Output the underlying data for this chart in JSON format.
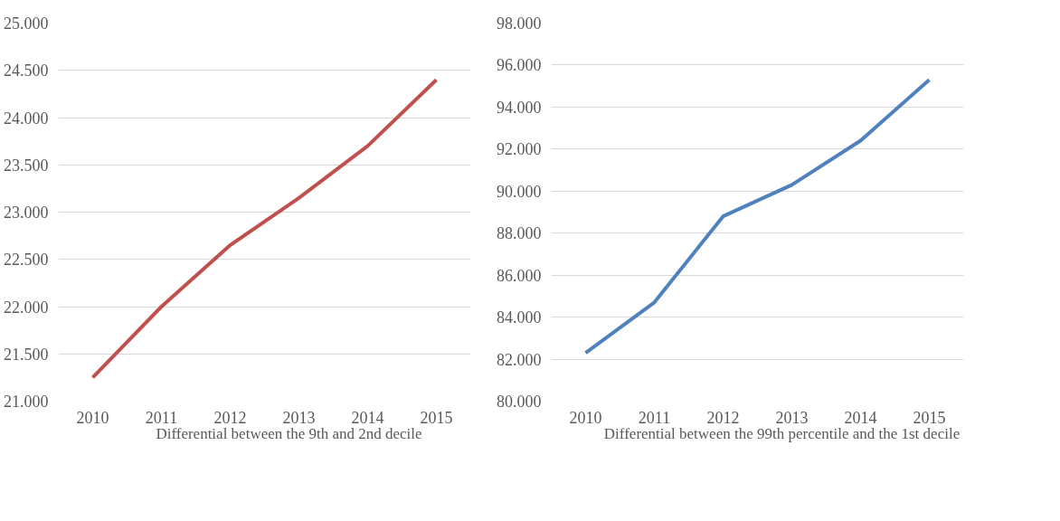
{
  "chart_data": [
    {
      "type": "line",
      "categories": [
        "2010",
        "2011",
        "2012",
        "2013",
        "2014",
        "2015"
      ],
      "series": [
        {
          "name": "Differential between the 9th and 2nd decile",
          "color": "#c0504d",
          "values": [
            21250,
            22000,
            22650,
            23150,
            23700,
            24400
          ]
        }
      ],
      "ylim": [
        21000,
        25000
      ],
      "yticks": [
        {
          "value": 21000,
          "label": "21.000"
        },
        {
          "value": 21500,
          "label": "21.500"
        },
        {
          "value": 22000,
          "label": "22.000"
        },
        {
          "value": 22500,
          "label": "22.500"
        },
        {
          "value": 23000,
          "label": "23.000"
        },
        {
          "value": 23500,
          "label": "23.500"
        },
        {
          "value": 24000,
          "label": "24.000"
        },
        {
          "value": 24500,
          "label": "24.500"
        },
        {
          "value": 25000,
          "label": "25.000"
        }
      ],
      "grid": "y",
      "legend": "bottom",
      "marker": "none",
      "line_style": "solid"
    },
    {
      "type": "line",
      "categories": [
        "2010",
        "2011",
        "2012",
        "2013",
        "2014",
        "2015"
      ],
      "series": [
        {
          "name": "Differential between the 99th percentile and the 1st decile",
          "color": "#4f81bd",
          "values": [
            82300,
            84700,
            88800,
            90300,
            92400,
            95300
          ]
        }
      ],
      "ylim": [
        80000,
        98000
      ],
      "yticks": [
        {
          "value": 80000,
          "label": "80.000"
        },
        {
          "value": 82000,
          "label": "82.000"
        },
        {
          "value": 84000,
          "label": "84.000"
        },
        {
          "value": 86000,
          "label": "86.000"
        },
        {
          "value": 88000,
          "label": "88.000"
        },
        {
          "value": 90000,
          "label": "90.000"
        },
        {
          "value": 92000,
          "label": "92.000"
        },
        {
          "value": 94000,
          "label": "94.000"
        },
        {
          "value": 96000,
          "label": "96.000"
        },
        {
          "value": 98000,
          "label": "98.000"
        }
      ],
      "grid": "y",
      "legend": "bottom",
      "marker": "none",
      "line_style": "solid"
    }
  ]
}
